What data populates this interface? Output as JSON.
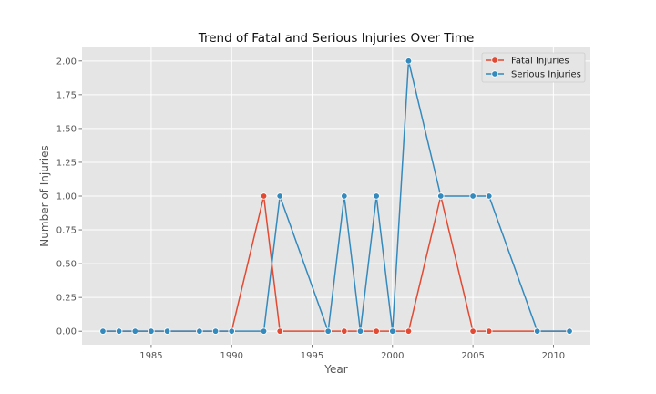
{
  "chart_data": {
    "type": "line",
    "title": "Trend of Fatal and Serious Injuries Over Time",
    "xlabel": "Year",
    "ylabel": "Number of Injuries",
    "xlim": [
      1980.7,
      2012.3
    ],
    "ylim": [
      -0.1,
      2.1
    ],
    "xticks": [
      1985,
      1990,
      1995,
      2000,
      2005,
      2010
    ],
    "yticks": [
      0.0,
      0.25,
      0.5,
      0.75,
      1.0,
      1.25,
      1.5,
      1.75,
      2.0
    ],
    "grid": true,
    "legend_position": "top-right",
    "series": [
      {
        "name": "Fatal Injuries",
        "color": "#e24a33",
        "x": [
          1982,
          1983,
          1984,
          1985,
          1986,
          1988,
          1989,
          1990,
          1992,
          1993,
          1996,
          1997,
          1998,
          1999,
          2000,
          2001,
          2003,
          2005,
          2006,
          2009,
          2011
        ],
        "y": [
          0,
          0,
          0,
          0,
          0,
          0,
          0,
          0,
          1,
          0,
          0,
          0,
          0,
          0,
          0,
          0,
          1,
          0,
          0,
          0,
          0
        ]
      },
      {
        "name": "Serious Injuries",
        "color": "#348abd",
        "x": [
          1982,
          1983,
          1984,
          1985,
          1986,
          1988,
          1989,
          1990,
          1992,
          1993,
          1996,
          1997,
          1998,
          1999,
          2000,
          2001,
          2003,
          2005,
          2006,
          2009,
          2011
        ],
        "y": [
          0,
          0,
          0,
          0,
          0,
          0,
          0,
          0,
          0,
          1,
          0,
          1,
          0,
          1,
          0,
          2,
          1,
          1,
          1,
          0,
          0
        ]
      }
    ]
  }
}
